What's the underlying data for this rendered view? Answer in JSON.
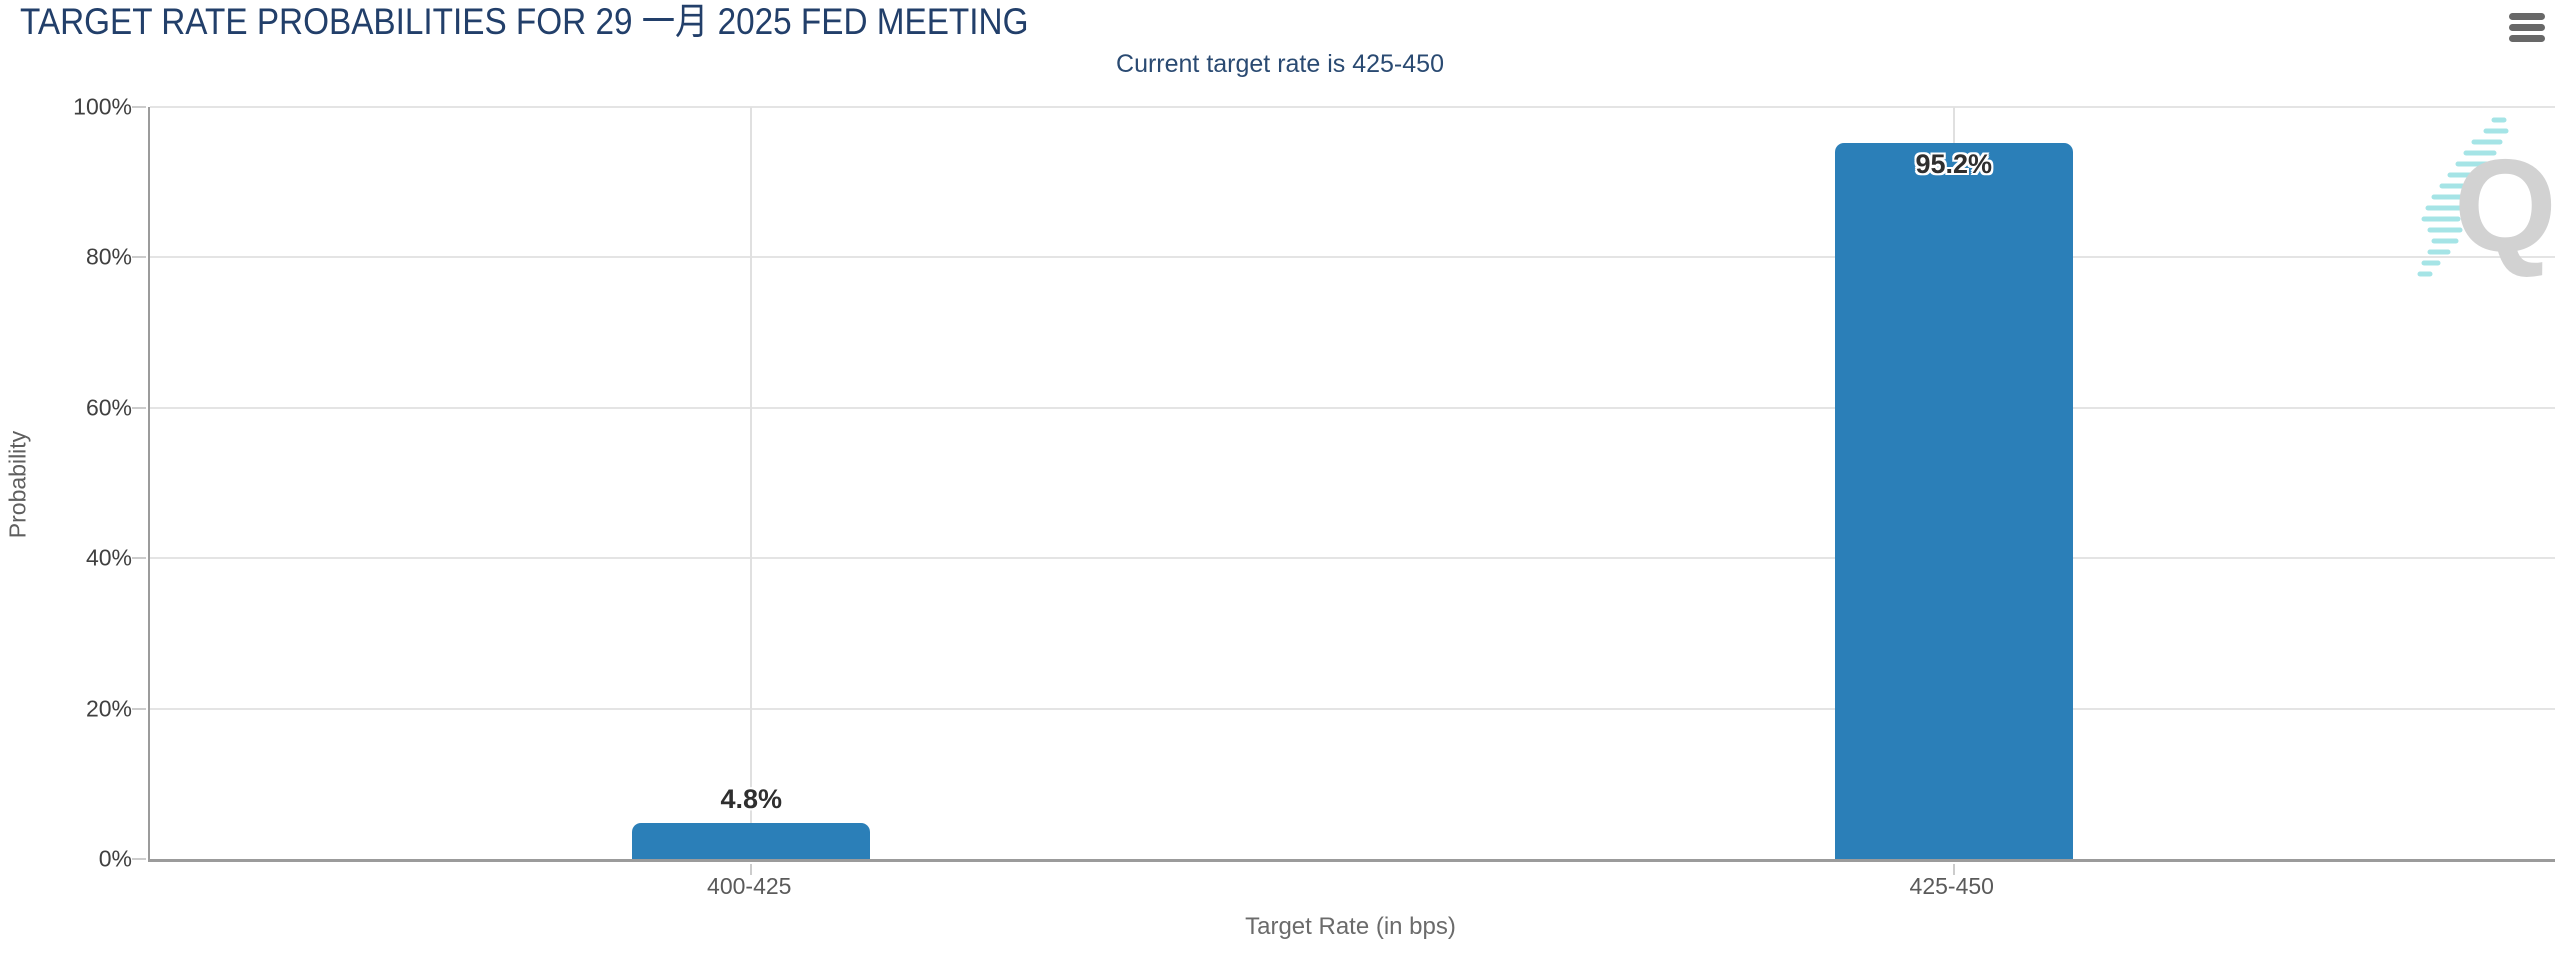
{
  "header": {
    "title": "TARGET RATE PROBABILITIES FOR 29 一月 2025 FED MEETING",
    "subtitle": "Current target rate is 425-450",
    "menu_icon": "hamburger-menu-icon"
  },
  "chart_data": {
    "type": "bar",
    "title": "TARGET RATE PROBABILITIES FOR 29 一月 2025 FED MEETING",
    "subtitle": "Current target rate is 425-450",
    "categories": [
      "400-425",
      "425-450"
    ],
    "values": [
      4.8,
      95.2
    ],
    "data_labels": [
      "4.8%",
      "95.2%"
    ],
    "xlabel": "Target Rate (in bps)",
    "ylabel": "Probability",
    "ylim": [
      0,
      100
    ],
    "ytick_interval": 20,
    "ytick_labels": [
      "100%",
      "80%",
      "60%",
      "40%",
      "20%",
      "0%"
    ],
    "grid": true,
    "legend": "none",
    "bar_color": "#2b7fb8"
  },
  "colors": {
    "title_navy": "#223f6a",
    "bar_blue": "#2b7fb8",
    "axis_gray": "#9b9b9b",
    "gridline_gray": "#e4e4e4",
    "watermark_gray": "#d2d2d2",
    "watermark_teal": "#a5e4e6"
  },
  "watermark": {
    "letter": "Q"
  }
}
